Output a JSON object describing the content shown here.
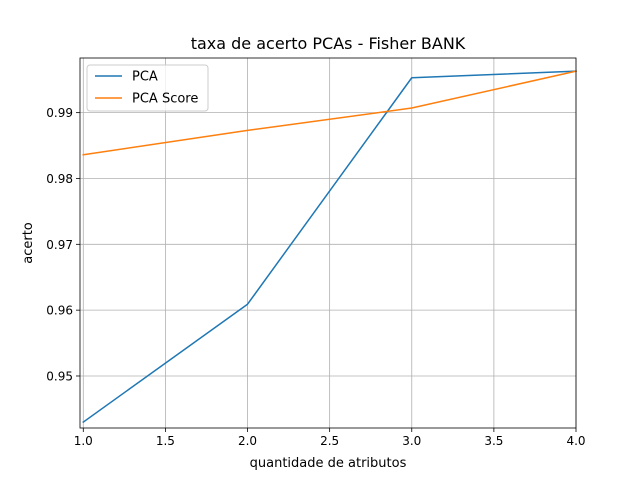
{
  "chart_data": {
    "type": "line",
    "title": "taxa de acerto PCAs - Fisher BANK",
    "xlabel": "quantidade de atributos",
    "ylabel": "acerto",
    "xlim": [
      0.98,
      4.0
    ],
    "ylim": [
      0.9421,
      0.9983
    ],
    "x_ticks": [
      1.0,
      1.5,
      2.0,
      2.5,
      3.0,
      3.5,
      4.0
    ],
    "x_tick_labels": [
      "1.0",
      "1.5",
      "2.0",
      "2.5",
      "3.0",
      "3.5",
      "4.0"
    ],
    "y_ticks": [
      0.95,
      0.96,
      0.97,
      0.98,
      0.99
    ],
    "y_tick_labels": [
      "0.95",
      "0.96",
      "0.97",
      "0.98",
      "0.99"
    ],
    "grid": true,
    "legend_position": "top-left",
    "x": [
      1,
      2,
      3,
      4
    ],
    "series": [
      {
        "name": "PCA",
        "color": "#1f77b4",
        "values": [
          0.943,
          0.9609,
          0.9953,
          0.9963
        ]
      },
      {
        "name": "PCA Score",
        "color": "#ff7f0e",
        "values": [
          0.9836,
          0.9873,
          0.9907,
          0.9963
        ]
      }
    ]
  }
}
